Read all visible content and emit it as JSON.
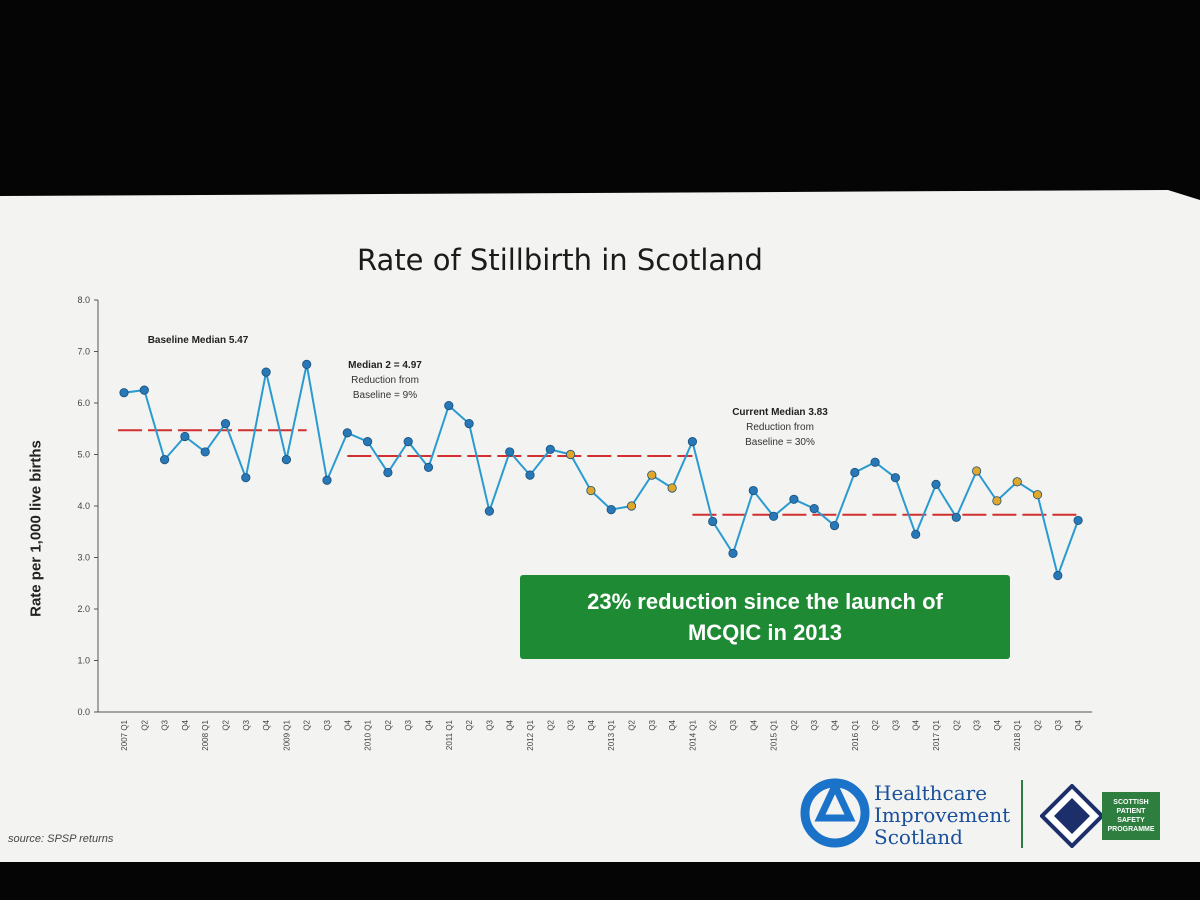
{
  "slide": {
    "title": "Rate of Stillbirth in Scotland",
    "source": "source: SPSP returns",
    "callout_line1": "23% reduction since the launch of",
    "callout_line2": "MCQIC in 2013",
    "logo": {
      "line1": "Healthcare",
      "line2": "Improvement",
      "line3": "Scotland",
      "spsp_line1": "SCOTTISH",
      "spsp_line2": "PATIENT",
      "spsp_line3": "SAFETY",
      "spsp_line4": "PROGRAMME"
    }
  },
  "annotations": {
    "baseline": "Baseline Median 5.47",
    "median2": "Median 2 = 4.97",
    "median2_sub1": "Reduction from",
    "median2_sub2": "Baseline = 9%",
    "current": "Current Median 3.83",
    "current_sub1": "Reduction from",
    "current_sub2": "Baseline = 30%"
  },
  "colors": {
    "line": "#2a9bd0",
    "point": "#2878b8",
    "highlight_point": "#e0a82a",
    "median_line": "#d23030",
    "callout": "#1f8a34"
  },
  "chart_data": {
    "type": "line",
    "ylabel": "Rate per 1,000 live births",
    "xlabel": "",
    "ylim": [
      0,
      8
    ],
    "y_ticks": [
      "0.0",
      "1.0",
      "2.0",
      "3.0",
      "4.0",
      "5.0",
      "6.0",
      "7.0",
      "8.0"
    ],
    "grid": false,
    "categories": [
      "2007 Q1",
      "Q2",
      "Q3",
      "Q4",
      "2008 Q1",
      "Q2",
      "Q3",
      "Q4",
      "2009 Q1",
      "Q2",
      "Q3",
      "Q4",
      "2010 Q1",
      "Q2",
      "Q3",
      "Q4",
      "2011 Q1",
      "Q2",
      "Q3",
      "Q4",
      "2012 Q1",
      "Q2",
      "Q3",
      "Q4",
      "2013 Q1",
      "Q2",
      "Q3",
      "Q4",
      "2014 Q1",
      "Q2",
      "Q3",
      "Q4",
      "2015 Q1",
      "Q2",
      "Q3",
      "Q4",
      "2016 Q1",
      "Q2",
      "Q3",
      "Q4",
      "2017 Q1",
      "Q2",
      "Q3",
      "Q4",
      "2018 Q1",
      "Q2",
      "Q3",
      "Q4"
    ],
    "values": [
      6.2,
      6.25,
      4.9,
      5.35,
      5.05,
      5.6,
      4.55,
      6.6,
      4.9,
      6.75,
      4.5,
      5.42,
      5.25,
      4.65,
      5.25,
      4.75,
      5.95,
      5.6,
      3.9,
      5.05,
      4.6,
      5.1,
      5.0,
      4.3,
      3.93,
      4.0,
      4.6,
      4.35,
      5.25,
      3.7,
      3.08,
      4.3,
      3.8,
      4.13,
      3.95,
      3.62,
      4.65,
      4.85,
      4.55,
      3.45,
      4.42,
      3.78,
      4.68,
      4.1,
      4.47,
      4.22,
      2.65,
      3.72
    ],
    "highlighted_indices": [
      22,
      23,
      25,
      26,
      27,
      42,
      43,
      44,
      45
    ],
    "medians": [
      {
        "name": "Baseline Median",
        "value": 5.47,
        "from": "2007 Q1",
        "to": "2009 Q2"
      },
      {
        "name": "Median 2",
        "value": 4.97,
        "from": "2009 Q4",
        "to": "2014 Q1"
      },
      {
        "name": "Current Median",
        "value": 3.83,
        "from": "2014 Q1",
        "to": "2018 Q4"
      }
    ]
  }
}
